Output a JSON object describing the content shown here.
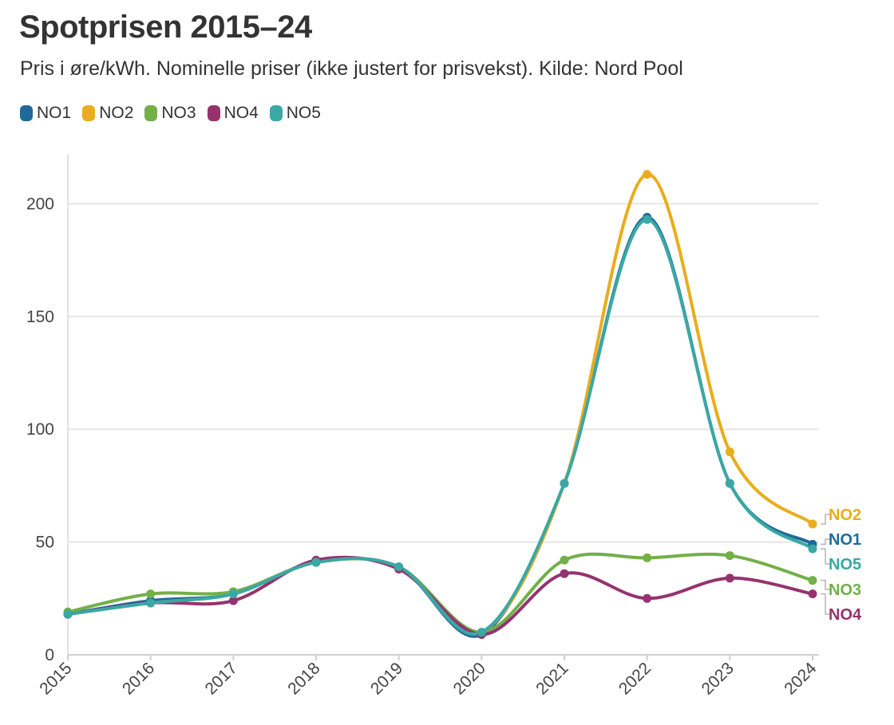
{
  "chart_data": {
    "type": "line",
    "title": "Spotprisen 2015–24",
    "subtitle": "Pris i øre/kWh. Nominelle priser (ikke justert for prisvekst). Kilde: Nord Pool",
    "x": [
      "2015",
      "2016",
      "2017",
      "2018",
      "2019",
      "2020",
      "2021",
      "2022",
      "2023",
      "2024"
    ],
    "ylim": [
      0,
      220
    ],
    "yticks": [
      0,
      50,
      100,
      150,
      200
    ],
    "grid": "horizontal",
    "legend_position": "top-left",
    "series": [
      {
        "name": "NO1",
        "color": "#1f6a9a",
        "values": [
          18,
          24,
          27,
          41,
          39,
          9,
          76,
          194,
          76,
          49
        ]
      },
      {
        "name": "NO2",
        "color": "#e9ad1c",
        "values": [
          18,
          23,
          27,
          41,
          39,
          10,
          76,
          213,
          90,
          58
        ]
      },
      {
        "name": "NO3",
        "color": "#72b048",
        "values": [
          19,
          27,
          28,
          41,
          39,
          10,
          42,
          43,
          44,
          33
        ]
      },
      {
        "name": "NO4",
        "color": "#95336f",
        "values": [
          18,
          23,
          24,
          42,
          38,
          9,
          36,
          25,
          34,
          27
        ]
      },
      {
        "name": "NO5",
        "color": "#3aa8a5",
        "values": [
          18,
          23,
          27,
          41,
          39,
          10,
          76,
          193,
          76,
          47
        ]
      }
    ],
    "end_labels": [
      "NO2",
      "NO1",
      "NO5",
      "NO3",
      "NO4"
    ]
  }
}
